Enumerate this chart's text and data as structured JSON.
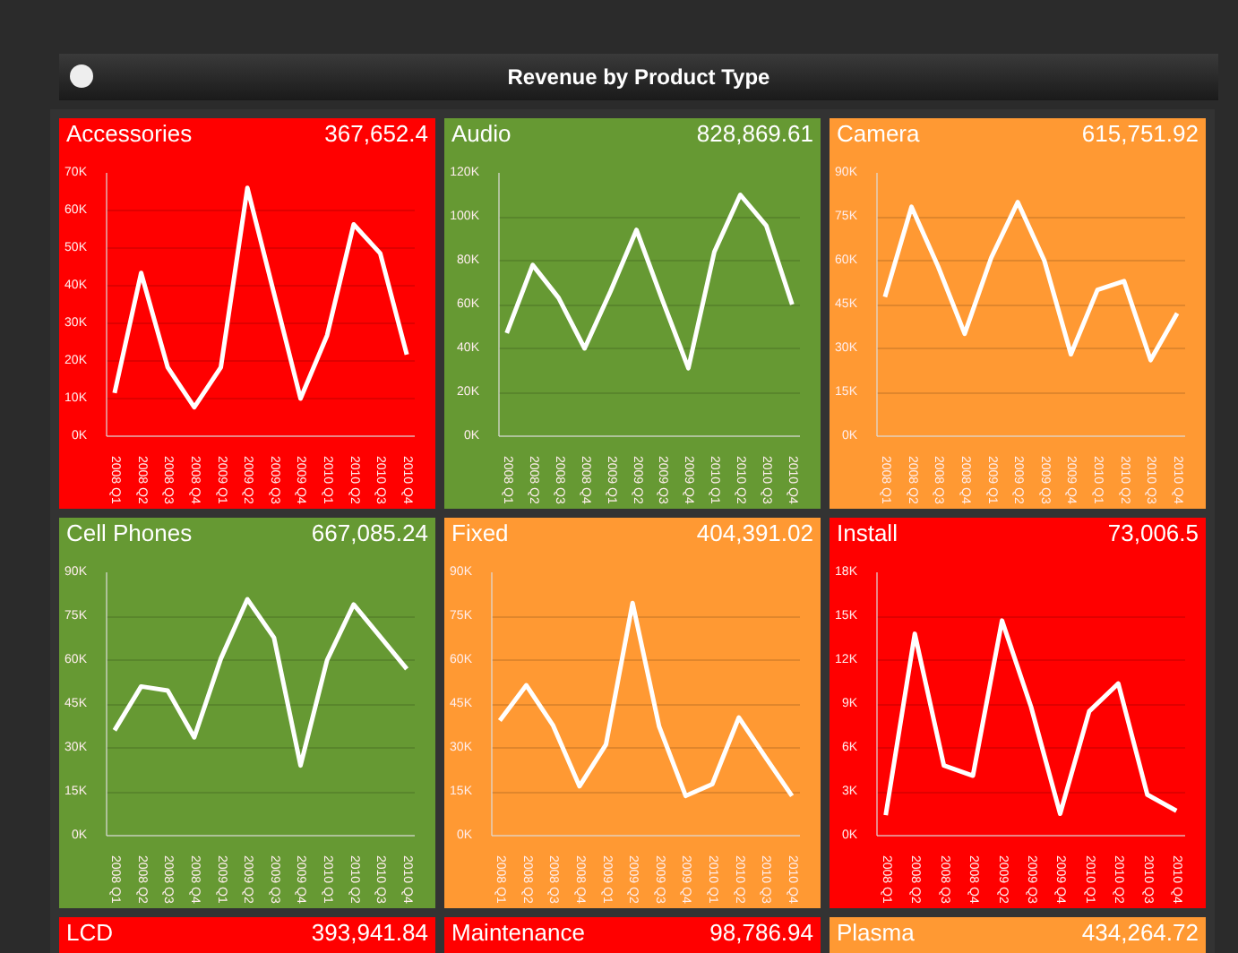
{
  "chart_data": [
    {
      "type": "other",
      "title": "Revenue by Product Type"
    },
    {
      "type": "line",
      "title": "Accessories",
      "subtitle": "367,652.4",
      "categories": [
        "2008 Q1",
        "2008 Q2",
        "2008 Q3",
        "2008 Q4",
        "2009 Q1",
        "2009 Q2",
        "2009 Q3",
        "2009 Q4",
        "2010 Q1",
        "2010 Q2",
        "2010 Q3",
        "2010 Q4"
      ],
      "series": [
        {
          "color": "#ffffff",
          "values": [
            11500,
            43400,
            18300,
            7700,
            18300,
            66000,
            38000,
            10000,
            26800,
            56300,
            48600,
            21700
          ]
        }
      ],
      "ylim": [
        0,
        70000
      ],
      "yticks": [
        {
          "value": 0,
          "label": "0K"
        },
        {
          "value": 10000,
          "label": "10K"
        },
        {
          "value": 20000,
          "label": "20K"
        },
        {
          "value": 30000,
          "label": "30K"
        },
        {
          "value": 40000,
          "label": "40K"
        },
        {
          "value": 50000,
          "label": "50K"
        },
        {
          "value": 60000,
          "label": "60K"
        },
        {
          "value": 70000,
          "label": "70K"
        }
      ],
      "grid": "y"
    },
    {
      "type": "line",
      "title": "Audio",
      "subtitle": "828,869.61",
      "categories": [
        "2008 Q1",
        "2008 Q2",
        "2008 Q3",
        "2008 Q4",
        "2009 Q1",
        "2009 Q2",
        "2009 Q3",
        "2009 Q4",
        "2010 Q1",
        "2010 Q2",
        "2010 Q3",
        "2010 Q4"
      ],
      "series": [
        {
          "color": "#ffffff",
          "values": [
            47000,
            78000,
            63000,
            40000,
            66000,
            94000,
            62000,
            31000,
            84000,
            110000,
            96000,
            60000
          ]
        }
      ],
      "ylim": [
        0,
        120000
      ],
      "yticks": [
        {
          "value": 0,
          "label": "0K"
        },
        {
          "value": 20000,
          "label": "20K"
        },
        {
          "value": 40000,
          "label": "40K"
        },
        {
          "value": 60000,
          "label": "60K"
        },
        {
          "value": 80000,
          "label": "80K"
        },
        {
          "value": 100000,
          "label": "100K"
        },
        {
          "value": 120000,
          "label": "120K"
        }
      ],
      "grid": "y"
    },
    {
      "type": "line",
      "title": "Camera",
      "subtitle": "615,751.92",
      "categories": [
        "2008 Q1",
        "2008 Q2",
        "2008 Q3",
        "2008 Q4",
        "2009 Q1",
        "2009 Q2",
        "2009 Q3",
        "2009 Q4",
        "2010 Q1",
        "2010 Q2",
        "2010 Q3",
        "2010 Q4"
      ],
      "series": [
        {
          "color": "#ffffff",
          "values": [
            47600,
            78400,
            58000,
            35000,
            61000,
            80000,
            60000,
            28000,
            50000,
            53000,
            26000,
            42000
          ]
        }
      ],
      "ylim": [
        0,
        90000
      ],
      "yticks": [
        {
          "value": 0,
          "label": "0K"
        },
        {
          "value": 15000,
          "label": "15K"
        },
        {
          "value": 30000,
          "label": "30K"
        },
        {
          "value": 45000,
          "label": "45K"
        },
        {
          "value": 60000,
          "label": "60K"
        },
        {
          "value": 75000,
          "label": "75K"
        },
        {
          "value": 90000,
          "label": "90K"
        }
      ],
      "grid": "y"
    },
    {
      "type": "line",
      "title": "Cell Phones",
      "subtitle": "667,085.24",
      "categories": [
        "2008 Q1",
        "2008 Q2",
        "2008 Q3",
        "2008 Q4",
        "2009 Q1",
        "2009 Q2",
        "2009 Q3",
        "2009 Q4",
        "2010 Q1",
        "2010 Q2",
        "2010 Q3",
        "2010 Q4"
      ],
      "series": [
        {
          "color": "#ffffff",
          "values": [
            36000,
            51000,
            49600,
            33600,
            60500,
            80800,
            67700,
            24000,
            60000,
            79000,
            68000,
            57000
          ]
        }
      ],
      "ylim": [
        0,
        90000
      ],
      "yticks": [
        {
          "value": 0,
          "label": "0K"
        },
        {
          "value": 15000,
          "label": "15K"
        },
        {
          "value": 30000,
          "label": "30K"
        },
        {
          "value": 45000,
          "label": "45K"
        },
        {
          "value": 60000,
          "label": "60K"
        },
        {
          "value": 75000,
          "label": "75K"
        },
        {
          "value": 90000,
          "label": "90K"
        }
      ],
      "grid": "y"
    },
    {
      "type": "line",
      "title": "Fixed",
      "subtitle": "404,391.02",
      "categories": [
        "2008 Q1",
        "2008 Q2",
        "2008 Q3",
        "2008 Q4",
        "2009 Q1",
        "2009 Q2",
        "2009 Q3",
        "2009 Q4",
        "2010 Q1",
        "2010 Q2",
        "2010 Q3",
        "2010 Q4"
      ],
      "series": [
        {
          "color": "#ffffff",
          "values": [
            39300,
            51400,
            37800,
            16900,
            31200,
            79500,
            37300,
            13600,
            17600,
            40400,
            26800,
            13600
          ]
        }
      ],
      "ylim": [
        0,
        90000
      ],
      "yticks": [
        {
          "value": 0,
          "label": "0K"
        },
        {
          "value": 15000,
          "label": "15K"
        },
        {
          "value": 30000,
          "label": "30K"
        },
        {
          "value": 45000,
          "label": "45K"
        },
        {
          "value": 60000,
          "label": "60K"
        },
        {
          "value": 75000,
          "label": "75K"
        },
        {
          "value": 90000,
          "label": "90K"
        }
      ],
      "grid": "y"
    },
    {
      "type": "line",
      "title": "Install",
      "subtitle": "73,006.5",
      "categories": [
        "2008 Q1",
        "2008 Q2",
        "2008 Q3",
        "2008 Q4",
        "2009 Q2",
        "2009 Q3",
        "2009 Q4",
        "2010 Q1",
        "2010 Q2",
        "2010 Q3",
        "2010 Q4"
      ],
      "series": [
        {
          "color": "#ffffff",
          "values": [
            1400,
            13800,
            4800,
            4100,
            14700,
            8800,
            1500,
            8500,
            10400,
            2800,
            1700
          ]
        }
      ],
      "ylim": [
        0,
        18000
      ],
      "yticks": [
        {
          "value": 0,
          "label": "0K"
        },
        {
          "value": 3000,
          "label": "3K"
        },
        {
          "value": 6000,
          "label": "6K"
        },
        {
          "value": 9000,
          "label": "9K"
        },
        {
          "value": 12000,
          "label": "12K"
        },
        {
          "value": 15000,
          "label": "15K"
        },
        {
          "value": 18000,
          "label": "18K"
        }
      ],
      "grid": "y"
    },
    {
      "type": "other",
      "title": "LCD",
      "subtitle": "393,941.84"
    },
    {
      "type": "other",
      "title": "Maintenance",
      "subtitle": "98,786.94"
    },
    {
      "type": "other",
      "title": "Plasma",
      "subtitle": "434,264.72"
    }
  ]
}
